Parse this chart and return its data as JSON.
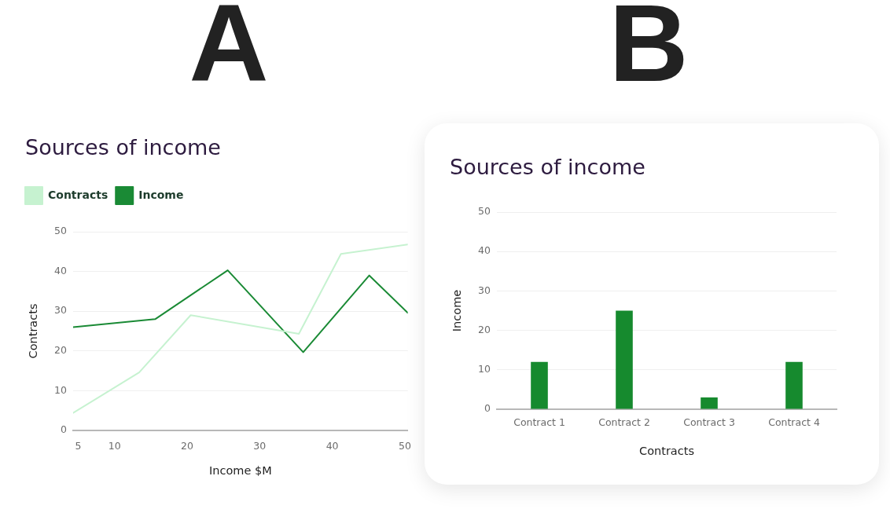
{
  "chart_data": [
    {
      "type": "line",
      "title": "Sources of income",
      "xlabel": "Income $M",
      "ylabel": "Contracts",
      "annotations": [
        "A"
      ],
      "series": [
        {
          "name": "Contracts",
          "color": "#c6f2d0",
          "x": [
            4.3,
            13.4,
            20.5,
            35.4,
            41.2,
            50.4
          ],
          "values": [
            4.4,
            14.6,
            29,
            24.3,
            44.4,
            46.8
          ]
        },
        {
          "name": "Income",
          "color": "#1a8a35",
          "x": [
            4.3,
            15.6,
            25.6,
            36,
            45.1,
            50.4
          ],
          "values": [
            26,
            28,
            40.3,
            19.7,
            39,
            29.6
          ]
        }
      ],
      "xlim": [
        4.3,
        50.4
      ],
      "xticks": [
        5,
        10,
        20,
        30,
        40,
        50
      ],
      "ylim": [
        0,
        50
      ],
      "yticks": [
        0,
        10,
        20,
        30,
        40,
        50
      ],
      "grid": "y",
      "legend": "top left"
    },
    {
      "type": "bar",
      "title": "Sources of income",
      "xlabel": "Contracts",
      "ylabel": "Income",
      "annotations": [
        "B"
      ],
      "categories": [
        "Contract 1",
        "Contract 2",
        "Contract 3",
        "Contract 4"
      ],
      "values": [
        12,
        25,
        3,
        12
      ],
      "color": "#168a2e",
      "ylim": [
        0,
        50
      ],
      "yticks": [
        0,
        10,
        20,
        30,
        40,
        50
      ],
      "grid": "y"
    }
  ]
}
